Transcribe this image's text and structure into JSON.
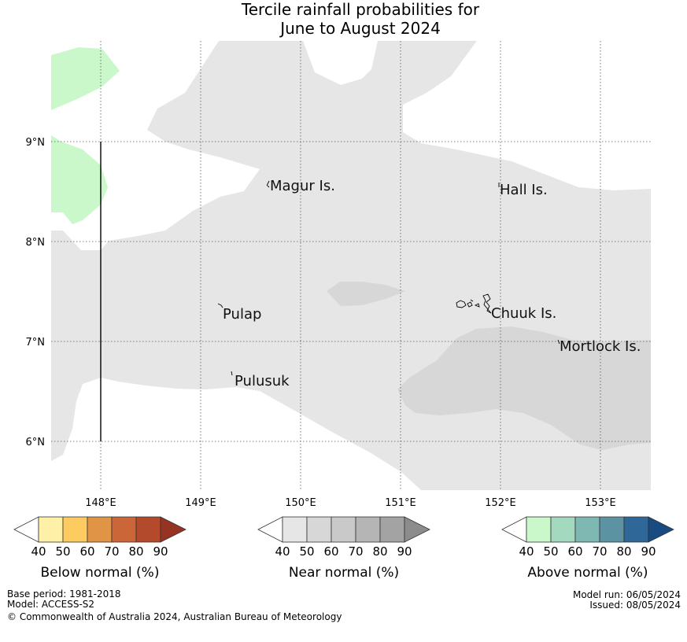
{
  "title": {
    "line1": "Tercile rainfall probabilities for",
    "line2": "June to August 2024"
  },
  "map": {
    "lat_labels": [
      "9°N",
      "8°N",
      "7°N",
      "6°N"
    ],
    "lon_labels": [
      "148°E",
      "149°E",
      "150°E",
      "151°E",
      "152°E",
      "153°E"
    ],
    "places": {
      "magur": "Magur Is.",
      "hall": "Hall Is.",
      "pulap": "Pulap",
      "chuuk": "Chuuk Is.",
      "mortlock": "Mortlock Is.",
      "pulusuk": "Pulusuk"
    }
  },
  "legends": {
    "ticks": [
      "40",
      "50",
      "60",
      "70",
      "80",
      "90"
    ],
    "below": {
      "title": "Below normal (%)",
      "colors": [
        "#ffffff",
        "#fff0a8",
        "#fdcb60",
        "#e09446",
        "#cb6638",
        "#b24a2b",
        "#973323"
      ]
    },
    "near": {
      "title": "Near normal (%)",
      "colors": [
        "#ffffff",
        "#e6e6e6",
        "#d7d7d7",
        "#c9c9c9",
        "#b5b5b5",
        "#a3a3a3",
        "#8c8c8c"
      ]
    },
    "above": {
      "title": "Above normal (%)",
      "colors": [
        "#ffffff",
        "#caf8ca",
        "#a2d9bf",
        "#7fb7b2",
        "#5b93a3",
        "#2f6799",
        "#184b82"
      ]
    }
  },
  "footer": {
    "base_period": "Base period: 1981-2018",
    "model": "Model: ACCESS-S2",
    "copyright": "© Commonwealth of Australia 2024, Australian Bureau of Meteorology",
    "model_run": "Model run: 06/05/2024",
    "issued": "Issued: 08/05/2024"
  }
}
